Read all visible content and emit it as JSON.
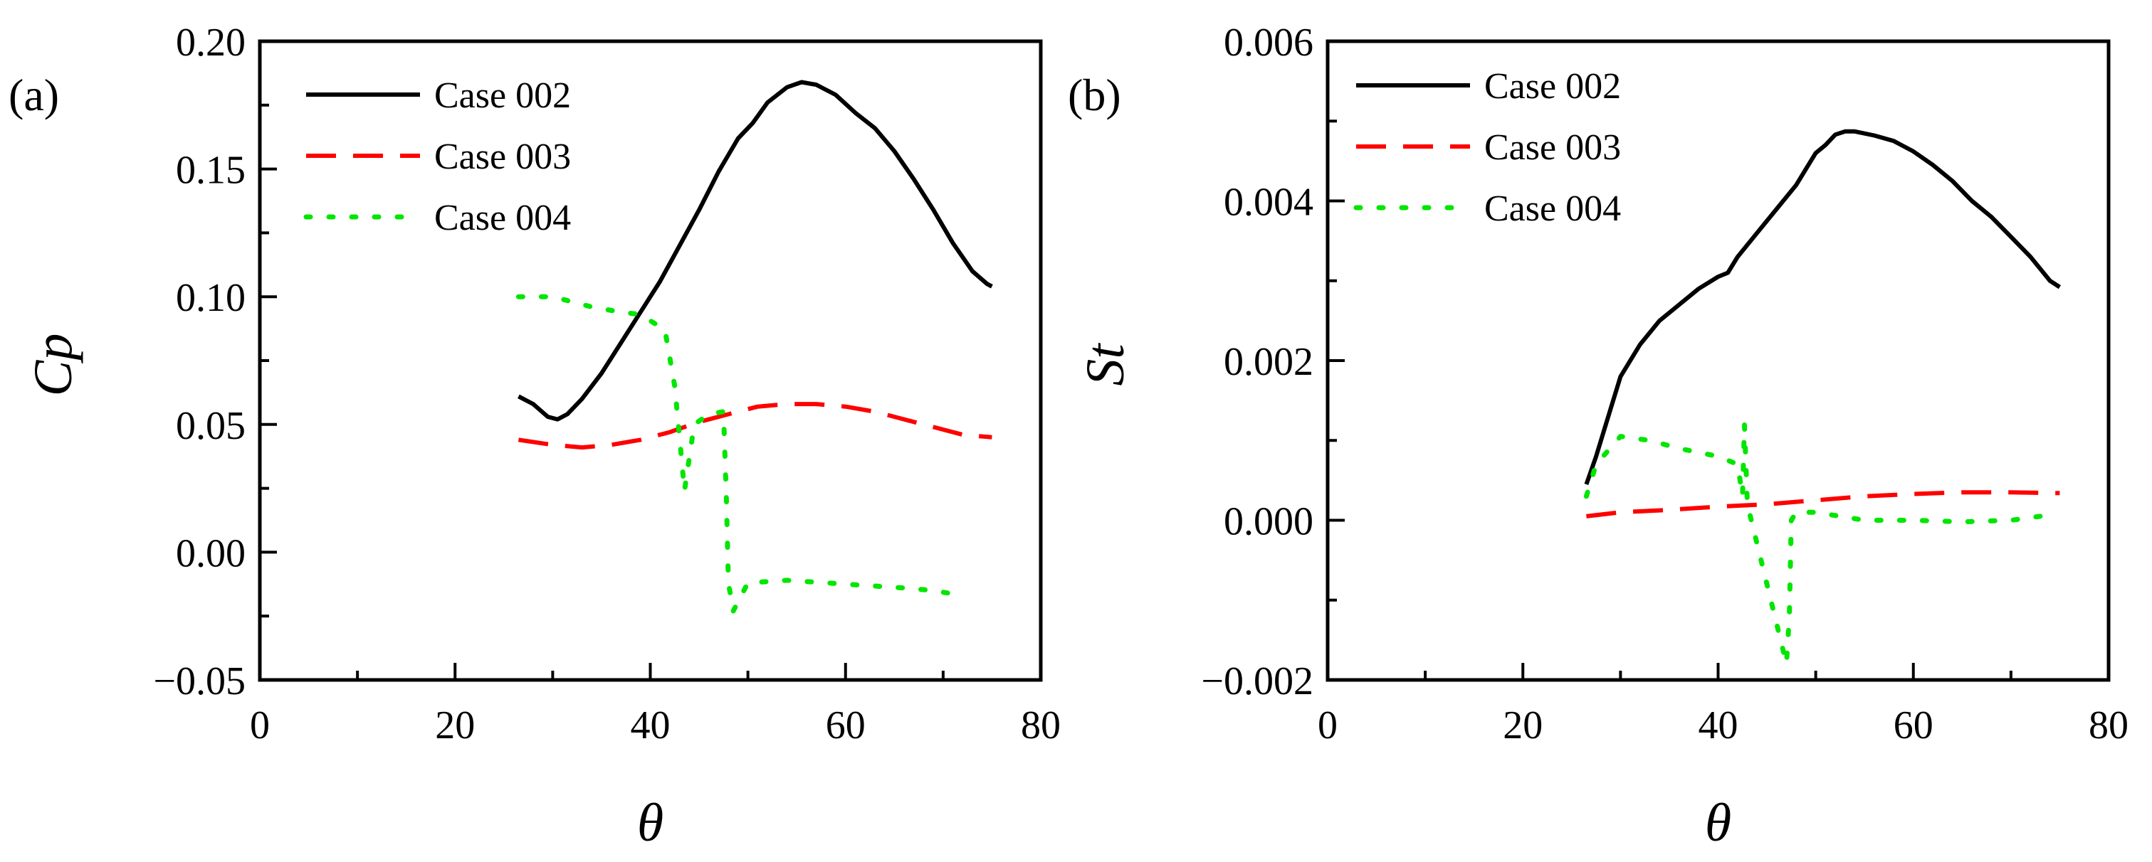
{
  "chart_data": [
    {
      "type": "line",
      "panel_label": "(a)",
      "xlabel": "θ",
      "ylabel": "Cp",
      "xlim": [
        0,
        80
      ],
      "ylim": [
        -0.05,
        0.2
      ],
      "xticks": [
        "0",
        "20",
        "40",
        "60",
        "80"
      ],
      "yticks": [
        "−0.05",
        "0.00",
        "0.05",
        "0.10",
        "0.15",
        "0.20"
      ],
      "legend_position": "top-left",
      "series": [
        {
          "name": "Case 002",
          "color": "#000000",
          "style": "solid",
          "x": [
            26.5,
            28,
            29.5,
            30.5,
            31.5,
            33,
            35,
            37,
            39,
            41,
            43,
            45,
            47,
            49,
            50.5,
            52,
            54,
            55.5,
            57,
            59,
            61,
            63,
            65,
            67,
            69,
            71,
            73,
            74.5,
            75
          ],
          "y": [
            0.061,
            0.058,
            0.053,
            0.052,
            0.054,
            0.06,
            0.07,
            0.082,
            0.094,
            0.106,
            0.12,
            0.134,
            0.149,
            0.162,
            0.168,
            0.176,
            0.182,
            0.184,
            0.183,
            0.179,
            0.172,
            0.166,
            0.157,
            0.146,
            0.134,
            0.121,
            0.11,
            0.105,
            0.104
          ]
        },
        {
          "name": "Case 003",
          "color": "#ff0000",
          "style": "dashed",
          "x": [
            26.5,
            30,
            33,
            36,
            39,
            42,
            45,
            48,
            51,
            54,
            57,
            60,
            63,
            66,
            69,
            72,
            75
          ],
          "y": [
            0.044,
            0.042,
            0.041,
            0.042,
            0.044,
            0.047,
            0.051,
            0.054,
            0.057,
            0.058,
            0.058,
            0.057,
            0.055,
            0.052,
            0.049,
            0.046,
            0.045
          ]
        },
        {
          "name": "Case 004",
          "color": "#00e600",
          "style": "dotted",
          "x": [
            26.5,
            30,
            34,
            37,
            39,
            41.5,
            42.5,
            43,
            43.5,
            44.5,
            46,
            47.5,
            47.8,
            48,
            48.5,
            50,
            54,
            58,
            62,
            66,
            69,
            72
          ],
          "y": [
            0.1,
            0.1,
            0.096,
            0.094,
            0.093,
            0.087,
            0.065,
            0.045,
            0.024,
            0.05,
            0.054,
            0.055,
            0.02,
            -0.012,
            -0.023,
            -0.012,
            -0.011,
            -0.012,
            -0.013,
            -0.014,
            -0.015,
            -0.017
          ]
        }
      ]
    },
    {
      "type": "line",
      "panel_label": "(b)",
      "xlabel": "θ",
      "ylabel": "St",
      "xlim": [
        0,
        80
      ],
      "ylim": [
        -0.002,
        0.006
      ],
      "xticks": [
        "0",
        "20",
        "40",
        "60",
        "80"
      ],
      "yticks": [
        "−0.002",
        "0.000",
        "0.002",
        "0.004",
        "0.006"
      ],
      "legend_position": "top-left",
      "series": [
        {
          "name": "Case 002",
          "color": "#000000",
          "style": "solid",
          "x": [
            26.5,
            27.5,
            28.5,
            30,
            32,
            34,
            36,
            38,
            40,
            41,
            42,
            44,
            46,
            48,
            49,
            50,
            51,
            52,
            53,
            54,
            56,
            58,
            60,
            62,
            64,
            66,
            68,
            70,
            72,
            74,
            75
          ],
          "y": [
            0.00045,
            0.0008,
            0.0012,
            0.0018,
            0.0022,
            0.0025,
            0.0027,
            0.0029,
            0.00305,
            0.0031,
            0.0033,
            0.0036,
            0.0039,
            0.0042,
            0.0044,
            0.0046,
            0.0047,
            0.00483,
            0.00487,
            0.00487,
            0.00482,
            0.00475,
            0.00462,
            0.00445,
            0.00425,
            0.004,
            0.0038,
            0.00355,
            0.0033,
            0.003,
            0.00292
          ]
        },
        {
          "name": "Case 003",
          "color": "#ff0000",
          "style": "dashed",
          "x": [
            26.5,
            30,
            35,
            40,
            45,
            50,
            55,
            60,
            65,
            70,
            75
          ],
          "y": [
            5e-05,
            0.0001,
            0.00013,
            0.00017,
            0.0002,
            0.00025,
            0.0003,
            0.00033,
            0.00035,
            0.00035,
            0.00034
          ]
        },
        {
          "name": "Case 004",
          "color": "#00e600",
          "style": "dotted",
          "x": [
            26.5,
            27.5,
            30,
            33,
            36,
            40,
            42,
            42.5,
            42.7,
            43,
            47,
            47.3,
            47.5,
            48,
            50,
            55,
            60,
            65,
            70,
            73
          ],
          "y": [
            0.0003,
            0.0007,
            0.00105,
            0.001,
            0.0009,
            0.0008,
            0.0007,
            0.0003,
            0.0012,
            0.0002,
            -0.0018,
            -0.0012,
            0.0,
            0.0001,
            0.0001,
            0.0,
            0.0,
            -2e-05,
            0.0,
            5e-05
          ]
        }
      ]
    }
  ]
}
